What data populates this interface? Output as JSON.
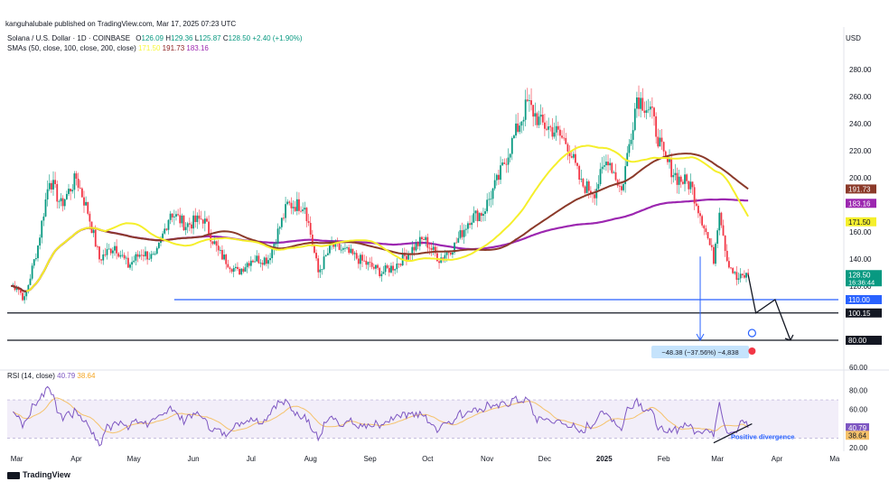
{
  "publisher": "kanguhalubale published on TradingView.com, Mar 17, 2025 07:23 UTC",
  "legend": {
    "symbol": "Solana / U.S. Dollar · 1D · COINBASE",
    "ohlc": {
      "O": "126.09",
      "H": "129.36",
      "L": "125.87",
      "C": "128.50",
      "chg": "+2.40 (+1.90%)"
    },
    "sma_label": "SMAs (50, close, 100, close, 200, close)",
    "sma_values": [
      "171.50",
      "191.73",
      "183.16"
    ],
    "rsi_label": "RSI (14, close)",
    "rsi_values": [
      "40.79",
      "38.64"
    ]
  },
  "currency": "USD",
  "brand": "TradingView",
  "colors": {
    "up": "#089981",
    "down": "#f23645",
    "sma50": "#f5ef2b",
    "sma100": "#8b3a2a",
    "sma200": "#9c27b0",
    "rsi": "#7e57c2",
    "rsi_ma": "#f5c26b",
    "rsi_band": "#ede7f6",
    "hline_blue": "#2962ff",
    "hline_black": "#131722"
  },
  "chart_data": [
    {
      "type": "candlestick",
      "title": "Solana / U.S. Dollar · 1D · COINBASE",
      "ylabel": "USD",
      "x_ticks": [
        "Mar",
        "Apr",
        "May",
        "Jun",
        "Jul",
        "Aug",
        "Sep",
        "Oct",
        "Nov",
        "Dec",
        "2025",
        "Feb",
        "Mar",
        "Apr",
        "Ma"
      ],
      "y_ticks": [
        "60.00",
        "80.00",
        "100.00",
        "120.00",
        "140.00",
        "160.00",
        "180.00",
        "200.00",
        "220.00",
        "240.00",
        "260.00",
        "280.00"
      ],
      "ylim": [
        60,
        295
      ],
      "price_path": [
        [
          "2024-03-01",
          120
        ],
        [
          "2024-03-05",
          110
        ],
        [
          "2024-03-12",
          150
        ],
        [
          "2024-03-18",
          200
        ],
        [
          "2024-03-24",
          180
        ],
        [
          "2024-04-01",
          200
        ],
        [
          "2024-04-07",
          175
        ],
        [
          "2024-04-13",
          140
        ],
        [
          "2024-04-21",
          150
        ],
        [
          "2024-04-28",
          135
        ],
        [
          "2024-05-05",
          145
        ],
        [
          "2024-05-12",
          140
        ],
        [
          "2024-05-20",
          175
        ],
        [
          "2024-05-28",
          165
        ],
        [
          "2024-06-06",
          170
        ],
        [
          "2024-06-14",
          145
        ],
        [
          "2024-06-24",
          130
        ],
        [
          "2024-07-01",
          140
        ],
        [
          "2024-07-10",
          140
        ],
        [
          "2024-07-20",
          180
        ],
        [
          "2024-07-29",
          180
        ],
        [
          "2024-08-05",
          130
        ],
        [
          "2024-08-12",
          150
        ],
        [
          "2024-08-20",
          145
        ],
        [
          "2024-09-01",
          135
        ],
        [
          "2024-09-07",
          130
        ],
        [
          "2024-09-14",
          135
        ],
        [
          "2024-09-21",
          145
        ],
        [
          "2024-09-29",
          155
        ],
        [
          "2024-10-07",
          140
        ],
        [
          "2024-10-15",
          150
        ],
        [
          "2024-10-23",
          170
        ],
        [
          "2024-10-30",
          175
        ],
        [
          "2024-11-07",
          200
        ],
        [
          "2024-11-15",
          230
        ],
        [
          "2024-11-22",
          255
        ],
        [
          "2024-11-29",
          240
        ],
        [
          "2024-12-06",
          235
        ],
        [
          "2024-12-13",
          225
        ],
        [
          "2024-12-20",
          195
        ],
        [
          "2024-12-27",
          190
        ],
        [
          "2025-01-03",
          215
        ],
        [
          "2025-01-10",
          190
        ],
        [
          "2025-01-18",
          260
        ],
        [
          "2025-01-25",
          250
        ],
        [
          "2025-02-01",
          215
        ],
        [
          "2025-02-08",
          200
        ],
        [
          "2025-02-15",
          195
        ],
        [
          "2025-02-22",
          165
        ],
        [
          "2025-02-27",
          140
        ],
        [
          "2025-03-02",
          178
        ],
        [
          "2025-03-06",
          140
        ],
        [
          "2025-03-11",
          125
        ],
        [
          "2025-03-17",
          128.5
        ]
      ],
      "series": [
        {
          "name": "SMA 50",
          "last": 171.5
        },
        {
          "name": "SMA 100",
          "last": 191.73
        },
        {
          "name": "SMA 200",
          "last": 183.16
        }
      ],
      "price_labels": [
        {
          "value": "128.50",
          "sub": "16:36:44",
          "color": "#089981"
        },
        {
          "value": "110.00",
          "color": "#2962ff"
        },
        {
          "value": "100.15",
          "color": "#131722"
        },
        {
          "value": "80.00",
          "color": "#131722"
        }
      ],
      "support_lines": [
        110.0,
        100.15,
        80.0
      ],
      "projection_path": [
        [
          "2025-03-17",
          128.5
        ],
        [
          "2025-03-21",
          100.15
        ],
        [
          "2025-03-31",
          110
        ],
        [
          "2025-04-08",
          80
        ]
      ],
      "measure_annotation": "−48.38 (−37.56%) −4,838"
    },
    {
      "type": "line",
      "title": "RSI (14, close)",
      "y_ticks": [
        "20.00",
        "40.00",
        "60.00",
        "80.00"
      ],
      "ylim": [
        20,
        88
      ],
      "band": [
        30,
        70
      ],
      "values_last": [
        40.79,
        38.64
      ],
      "annotation": "Positive divergence"
    }
  ]
}
